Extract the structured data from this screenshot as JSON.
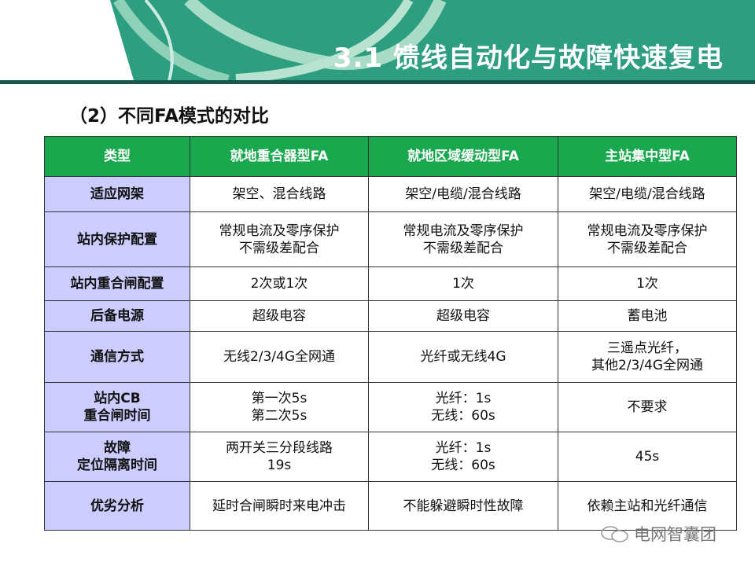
{
  "header": {
    "title": "3.1 馈线自动化与故障快速复电",
    "accent": "#2e9e80"
  },
  "subtitle": "（2）不同FA模式的对比",
  "table": {
    "columns": [
      "类型",
      "就地重合器型FA",
      "就地区域缓动型FA",
      "主站集中型FA"
    ],
    "rows": [
      {
        "label": "适应网架",
        "cells": [
          "架空、混合线路",
          "架空/电缆/混合线路",
          "架空/电缆/混合线路"
        ]
      },
      {
        "label": "站内保护配置",
        "cells": [
          "常规电流及零序保护\n不需级差配合",
          "常规电流及零序保护\n不需级差配合",
          "常规电流及零序保护\n不需级差配合"
        ]
      },
      {
        "label": "站内重合闸配置",
        "cells": [
          "2次或1次",
          "1次",
          "1次"
        ]
      },
      {
        "label": "后备电源",
        "cells": [
          "超级电容",
          "超级电容",
          "蓄电池"
        ]
      },
      {
        "label": "通信方式",
        "cells": [
          "无线2/3/4G全网通",
          "光纤或无线4G",
          "三遥点光纤，\n其他2/3/4G全网通"
        ]
      },
      {
        "label": "站内CB\n重合闸时间",
        "cells": [
          "第一次5s\n第二次5s",
          "光纤：1s\n无线：60s",
          "不要求"
        ]
      },
      {
        "label": "故障\n定位隔离时间",
        "cells": [
          "两开关三分段线路\n19s",
          "光纤：1s\n无线：60s",
          "45s"
        ]
      },
      {
        "label": "优劣分析",
        "cells": [
          "延时合闸瞬时来电冲击",
          "不能躲避瞬时性故障",
          "依赖主站和光纤通信"
        ]
      }
    ],
    "header_color": "#1aa84f",
    "label_color": "#ccccff"
  },
  "watermark": {
    "text": "电网智囊团",
    "icon": "wechat-icon"
  }
}
